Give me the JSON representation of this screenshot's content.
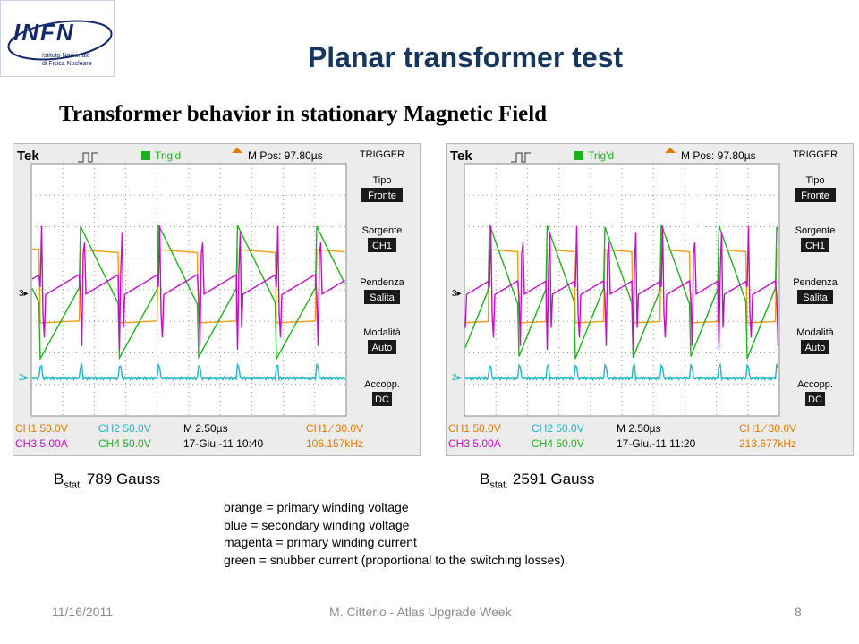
{
  "logo": {
    "word": "INFN",
    "line1": "Istituto Nazionale",
    "line2": "di Fisica Nucleare"
  },
  "title": "Planar transformer test",
  "subtitle": "Transformer behavior in stationary Magnetic Field",
  "scopes": [
    {
      "brand": "Tek",
      "status": "Trig'd",
      "mpos": "M Pos: 97.80µs",
      "menu": {
        "header": "TRIGGER",
        "items": [
          {
            "label": "Tipo",
            "value": "Fronte"
          },
          {
            "label": "Sorgente",
            "value": "CH1"
          },
          {
            "label": "Pendenza",
            "value": "Salita"
          },
          {
            "label": "Modalità",
            "value": "Auto"
          },
          {
            "label": "Accopp.",
            "value": "DC"
          }
        ]
      },
      "bottom": {
        "ch1": "CH1  50.0V",
        "ch2": "CH2  50.0V",
        "m": "M 2.50µs",
        "trig": "CH1 ∕ 30.0V",
        "ch3": "CH3  5.00A",
        "ch4": "CH4  50.0V",
        "date": "17-Giu.-11 10:40",
        "freq": "106.157kHz"
      },
      "colors": {
        "orange": "#f39c12",
        "green": "#1fb21f",
        "magenta": "#c40fc4",
        "blue": "#1bb7c4"
      }
    },
    {
      "brand": "Tek",
      "status": "Trig'd",
      "mpos": "M Pos: 97.80µs",
      "menu": {
        "header": "TRIGGER",
        "items": [
          {
            "label": "Tipo",
            "value": "Fronte"
          },
          {
            "label": "Sorgente",
            "value": "CH1"
          },
          {
            "label": "Pendenza",
            "value": "Salita"
          },
          {
            "label": "Modalità",
            "value": "Auto"
          },
          {
            "label": "Accopp.",
            "value": "DC"
          }
        ]
      },
      "bottom": {
        "ch1": "CH1  50.0V",
        "ch2": "CH2  50.0V",
        "m": "M 2.50µs",
        "trig": "CH1 ∕ 30.0V",
        "ch3": "CH3  5.00A",
        "ch4": "CH4  50.0V",
        "date": "17-Giu.-11 11:20",
        "freq": "213.677kHz"
      },
      "colors": {
        "orange": "#f39c12",
        "green": "#1fb21f",
        "magenta": "#c40fc4",
        "blue": "#1bb7c4"
      }
    }
  ],
  "captions": [
    {
      "b": "B",
      "sub": "stat.",
      "value": " 789 Gauss"
    },
    {
      "b": "B",
      "sub": "stat.",
      "value": " 2591 Gauss"
    }
  ],
  "legend": [
    "orange = primary winding voltage",
    "blue = secondary winding voltage",
    "magenta  = primary winding current",
    "green = snubber current (proportional to the switching losses)."
  ],
  "footer": {
    "date": "11/16/2011",
    "center": "M. Citterio - Atlas Upgrade Week",
    "page": "8"
  }
}
